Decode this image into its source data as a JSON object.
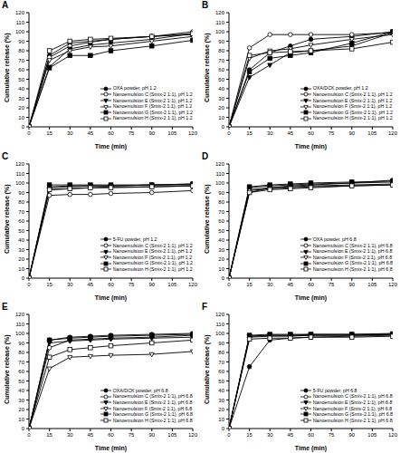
{
  "chart_data": [
    {
      "type": "line",
      "title": "A",
      "x_label": "Time (min)",
      "y_label": "Cumulative release (%)",
      "x": [
        0,
        15,
        30,
        45,
        60,
        90,
        120
      ],
      "xlim": [
        0,
        120
      ],
      "xticks": [
        0,
        15,
        30,
        45,
        60,
        75,
        90,
        105,
        120
      ],
      "ylim": [
        0,
        120
      ],
      "yticks": [
        0,
        10,
        20,
        30,
        40,
        50,
        60,
        70,
        80,
        90,
        100,
        110,
        120
      ],
      "legend": "lower right",
      "series": [
        {
          "name": "OXA powder, pH 1.2",
          "color": "#000000",
          "marker": "circle",
          "values": [
            0,
            75,
            88,
            90,
            92,
            95,
            97
          ]
        },
        {
          "name": "Nanoemulsion C (Smix-2 1:1), pH 1.2",
          "color": "#000000",
          "marker": "circle-open",
          "values": [
            0,
            73,
            85,
            89,
            92,
            95,
            100
          ]
        },
        {
          "name": "Nanoemulsion E (Smix-2 1:1), pH 1.2",
          "color": "#000000",
          "marker": "triangle-down",
          "values": [
            0,
            63,
            82,
            86,
            88,
            92,
            98
          ]
        },
        {
          "name": "Nanoemulsion F (Smix-2 1:1), pH 1.2",
          "color": "#000000",
          "marker": "triangle-down-open",
          "values": [
            0,
            70,
            80,
            84,
            85,
            90,
            95
          ]
        },
        {
          "name": "Nanoemulsion G (Smix-2 1:1), pH 1.2",
          "color": "#000000",
          "marker": "square",
          "values": [
            0,
            62,
            75,
            75,
            80,
            85,
            91
          ]
        },
        {
          "name": "Nanoemulsion H (Smix-2 1:1), pH 1.2",
          "color": "#000000",
          "marker": "square-open",
          "values": [
            0,
            80,
            90,
            92,
            93,
            95,
            98
          ]
        }
      ]
    },
    {
      "type": "line",
      "title": "B",
      "x_label": "Time (min)",
      "y_label": "Cumulative release (%)",
      "x": [
        0,
        15,
        30,
        45,
        60,
        90,
        120
      ],
      "xlim": [
        0,
        120
      ],
      "xticks": [
        0,
        15,
        30,
        45,
        60,
        75,
        90,
        105,
        120
      ],
      "ylim": [
        0,
        120
      ],
      "yticks": [
        0,
        10,
        20,
        30,
        40,
        50,
        60,
        70,
        80,
        90,
        100,
        110,
        120
      ],
      "legend": "lower right",
      "series": [
        {
          "name": "OXA/DCK powder, pH 1.2",
          "color": "#000000",
          "marker": "circle",
          "values": [
            0,
            60,
            78,
            85,
            92,
            95,
            100
          ]
        },
        {
          "name": "Nanoemulsion C (Smix-2 1:1), pH 1.2",
          "color": "#000000",
          "marker": "circle-open",
          "values": [
            0,
            83,
            97,
            97,
            97,
            97,
            99
          ]
        },
        {
          "name": "Nanoemulsion E (Smix-2 1:1), pH 1.2",
          "color": "#000000",
          "marker": "triangle-down",
          "values": [
            0,
            52,
            65,
            78,
            80,
            85,
            99
          ]
        },
        {
          "name": "Nanoemulsion F (Smix-2 1:1), pH 1.2",
          "color": "#000000",
          "marker": "triangle-down-open",
          "values": [
            0,
            72,
            80,
            82,
            86,
            92,
            97
          ]
        },
        {
          "name": "Nanoemulsion G (Smix-2 1:1), pH 1.2",
          "color": "#000000",
          "marker": "square",
          "values": [
            0,
            58,
            72,
            75,
            78,
            88,
            100
          ]
        },
        {
          "name": "Nanoemulsion H (Smix-2 1:1), pH 1.2",
          "color": "#000000",
          "marker": "square-open",
          "values": [
            0,
            75,
            78,
            79,
            80,
            82,
            89
          ]
        }
      ]
    },
    {
      "type": "line",
      "title": "C",
      "x_label": "Time (min)",
      "y_label": "Cumulative release (%)",
      "x": [
        0,
        15,
        30,
        45,
        60,
        90,
        120
      ],
      "xlim": [
        0,
        120
      ],
      "xticks": [
        0,
        15,
        30,
        45,
        60,
        75,
        90,
        105,
        120
      ],
      "ylim": [
        0,
        120
      ],
      "yticks": [
        0,
        10,
        20,
        30,
        40,
        50,
        60,
        70,
        80,
        90,
        100,
        110,
        120
      ],
      "legend": "lower right",
      "series": [
        {
          "name": "5-FU powder, pH 1.2",
          "color": "#000000",
          "marker": "circle",
          "values": [
            0,
            95,
            96,
            97,
            97,
            98,
            99
          ]
        },
        {
          "name": "Nanoemulsion C (Smix-2 1:1), pH 1.2",
          "color": "#000000",
          "marker": "circle-open",
          "values": [
            0,
            87,
            88,
            88,
            89,
            90,
            92
          ]
        },
        {
          "name": "Nanoemulsion E (Smix-2 1:1), pH 1.2",
          "color": "#000000",
          "marker": "triangle-down",
          "values": [
            0,
            93,
            94,
            95,
            96,
            96,
            97
          ]
        },
        {
          "name": "Nanoemulsion F (Smix-2 1:1), pH 1.2",
          "color": "#000000",
          "marker": "triangle-down-open",
          "values": [
            0,
            96,
            97,
            97,
            97,
            98,
            98
          ]
        },
        {
          "name": "Nanoemulsion G (Smix-2 1:1), pH 1.2",
          "color": "#000000",
          "marker": "square",
          "values": [
            0,
            98,
            98,
            98,
            98,
            98,
            99
          ]
        },
        {
          "name": "Nanoemulsion H (Smix-2 1:1), pH 1.2",
          "color": "#000000",
          "marker": "square-open",
          "values": [
            0,
            93,
            94,
            95,
            95,
            96,
            97
          ]
        }
      ]
    },
    {
      "type": "line",
      "title": "D",
      "x_label": "Time (min)",
      "y_label": "Cumulative release (%)",
      "x": [
        0,
        15,
        30,
        45,
        60,
        90,
        120
      ],
      "xlim": [
        0,
        120
      ],
      "xticks": [
        0,
        15,
        30,
        45,
        60,
        75,
        90,
        105,
        120
      ],
      "ylim": [
        0,
        120
      ],
      "yticks": [
        0,
        10,
        20,
        30,
        40,
        50,
        60,
        70,
        80,
        90,
        100,
        110,
        120
      ],
      "legend": "lower right",
      "series": [
        {
          "name": "OXA powder, pH 6.8",
          "color": "#000000",
          "marker": "circle",
          "values": [
            0,
            90,
            95,
            97,
            98,
            100,
            103
          ]
        },
        {
          "name": "Nanoemulsion C (Smix-2 1:1), pH 6.8",
          "color": "#000000",
          "marker": "circle-open",
          "values": [
            0,
            92,
            94,
            95,
            96,
            97,
            98
          ]
        },
        {
          "name": "Nanoemulsion E (Smix-2 1:1), pH 6.8",
          "color": "#000000",
          "marker": "triangle-down",
          "values": [
            0,
            95,
            97,
            98,
            99,
            100,
            101
          ]
        },
        {
          "name": "Nanoemulsion F (Smix-2 1:1), pH 6.8",
          "color": "#000000",
          "marker": "triangle-down-open",
          "values": [
            0,
            93,
            95,
            96,
            97,
            98,
            99
          ]
        },
        {
          "name": "Nanoemulsion G (Smix-2 1:1), pH 6.8",
          "color": "#000000",
          "marker": "square",
          "values": [
            0,
            96,
            98,
            99,
            100,
            101,
            102
          ]
        },
        {
          "name": "Nanoemulsion H (Smix-2 1:1), pH 6.8",
          "color": "#000000",
          "marker": "square-open",
          "values": [
            0,
            90,
            93,
            94,
            95,
            97,
            98
          ]
        }
      ]
    },
    {
      "type": "line",
      "title": "E",
      "x_label": "Time (min)",
      "y_label": "Cumulative release (%)",
      "x": [
        0,
        15,
        30,
        45,
        60,
        90,
        120
      ],
      "xlim": [
        0,
        120
      ],
      "xticks": [
        0,
        15,
        30,
        45,
        60,
        75,
        90,
        105,
        120
      ],
      "ylim": [
        0,
        120
      ],
      "yticks": [
        0,
        10,
        20,
        30,
        40,
        50,
        60,
        70,
        80,
        90,
        100,
        110,
        120
      ],
      "legend": "lower right",
      "series": [
        {
          "name": "OXA/DCK powder, pH 6.8",
          "color": "#000000",
          "marker": "circle",
          "values": [
            0,
            93,
            96,
            97,
            98,
            99,
            100
          ]
        },
        {
          "name": "Nanoemulsion C (Smix-2 1:1), pH 6.8",
          "color": "#000000",
          "marker": "circle-open",
          "values": [
            0,
            85,
            93,
            94,
            95,
            96,
            98
          ]
        },
        {
          "name": "Nanoemulsion E (Smix-2 1:1), pH 6.8",
          "color": "#000000",
          "marker": "triangle-down",
          "values": [
            0,
            90,
            92,
            93,
            94,
            95,
            96
          ]
        },
        {
          "name": "Nanoemulsion F (Smix-2 1:1), pH 6.8",
          "color": "#000000",
          "marker": "triangle-down-open",
          "values": [
            0,
            63,
            75,
            76,
            77,
            78,
            81
          ]
        },
        {
          "name": "Nanoemulsion G (Smix-2 1:1), pH 6.8",
          "color": "#000000",
          "marker": "square",
          "values": [
            0,
            93,
            95,
            96,
            97,
            98,
            99
          ]
        },
        {
          "name": "Nanoemulsion H (Smix-2 1:1), pH 6.8",
          "color": "#000000",
          "marker": "square-open",
          "values": [
            0,
            75,
            83,
            85,
            87,
            90,
            93
          ]
        }
      ]
    },
    {
      "type": "line",
      "title": "F",
      "x_label": "Time (min)",
      "y_label": "Cumulative release (%)",
      "x": [
        0,
        15,
        30,
        45,
        60,
        90,
        120
      ],
      "xlim": [
        0,
        120
      ],
      "xticks": [
        0,
        15,
        30,
        45,
        60,
        75,
        90,
        105,
        120
      ],
      "ylim": [
        0,
        120
      ],
      "yticks": [
        0,
        10,
        20,
        30,
        40,
        50,
        60,
        70,
        80,
        90,
        100,
        110,
        120
      ],
      "legend": "lower right",
      "series": [
        {
          "name": "5-FU powder, pH 6.8",
          "color": "#000000",
          "marker": "circle",
          "values": [
            0,
            65,
            93,
            95,
            96,
            97,
            98
          ]
        },
        {
          "name": "Nanoemulsion C (Smix-2 1:1), pH 6.8",
          "color": "#000000",
          "marker": "circle-open",
          "values": [
            0,
            96,
            97,
            97,
            98,
            98,
            99
          ]
        },
        {
          "name": "Nanoemulsion E (Smix-2 1:1), pH 6.8",
          "color": "#000000",
          "marker": "triangle-down",
          "values": [
            0,
            97,
            98,
            98,
            99,
            99,
            100
          ]
        },
        {
          "name": "Nanoemulsion F (Smix-2 1:1), pH 6.8",
          "color": "#000000",
          "marker": "triangle-down-open",
          "values": [
            0,
            97,
            98,
            98,
            98,
            98,
            99
          ]
        },
        {
          "name": "Nanoemulsion G (Smix-2 1:1), pH 6.8",
          "color": "#000000",
          "marker": "square",
          "values": [
            0,
            98,
            99,
            99,
            99,
            99,
            99
          ]
        },
        {
          "name": "Nanoemulsion H (Smix-2 1:1), pH 6.8",
          "color": "#000000",
          "marker": "square-open",
          "values": [
            0,
            94,
            95,
            95,
            96,
            96,
            97
          ]
        }
      ]
    }
  ]
}
